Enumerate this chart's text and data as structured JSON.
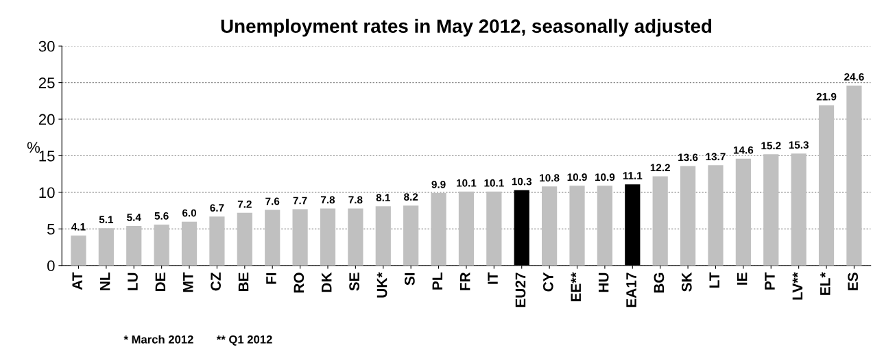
{
  "chart_data": {
    "type": "bar",
    "title": "Unemployment rates in May 2012, seasonally adjusted",
    "ylabel": "%",
    "categories": [
      "AT",
      "NL",
      "LU",
      "DE",
      "MT",
      "CZ",
      "BE",
      "FI",
      "RO",
      "DK",
      "SE",
      "UK*",
      "SI",
      "PL",
      "FR",
      "IT",
      "EU27",
      "CY",
      "EE**",
      "HU",
      "EA17",
      "BG",
      "SK",
      "LT",
      "IE",
      "PT",
      "LV**",
      "EL*",
      "ES"
    ],
    "values": [
      4.1,
      5.1,
      5.4,
      5.6,
      6.0,
      6.7,
      7.2,
      7.6,
      7.7,
      7.8,
      7.8,
      8.1,
      8.2,
      9.9,
      10.1,
      10.1,
      10.3,
      10.8,
      10.9,
      10.9,
      11.1,
      12.2,
      13.6,
      13.7,
      14.6,
      15.2,
      15.3,
      21.9,
      24.6
    ],
    "value_labels": [
      "4.1",
      "5.1",
      "5.4",
      "5.6",
      "6.0",
      "6.7",
      "7.2",
      "7.6",
      "7.7",
      "7.8",
      "7.8",
      "8.1",
      "8.2",
      "9.9",
      "10.1",
      "10.1",
      "10.3",
      "10.8",
      "10.9",
      "10.9",
      "11.1",
      "12.2",
      "13.6",
      "13.7",
      "14.6",
      "15.2",
      "15.3",
      "21.9",
      "24.6"
    ],
    "colors": [
      "#c0c0c0",
      "#c0c0c0",
      "#c0c0c0",
      "#c0c0c0",
      "#c0c0c0",
      "#c0c0c0",
      "#c0c0c0",
      "#c0c0c0",
      "#c0c0c0",
      "#c0c0c0",
      "#c0c0c0",
      "#c0c0c0",
      "#c0c0c0",
      "#c0c0c0",
      "#c0c0c0",
      "#c0c0c0",
      "#000000",
      "#c0c0c0",
      "#c0c0c0",
      "#c0c0c0",
      "#000000",
      "#c0c0c0",
      "#c0c0c0",
      "#c0c0c0",
      "#c0c0c0",
      "#c0c0c0",
      "#c0c0c0",
      "#c0c0c0",
      "#c0c0c0"
    ],
    "ylim": [
      0,
      30
    ],
    "yticks": [
      0,
      5,
      10,
      15,
      20,
      25,
      30
    ],
    "grid": "y",
    "annotations": [
      "* March 2012",
      "** Q1 2012"
    ]
  }
}
